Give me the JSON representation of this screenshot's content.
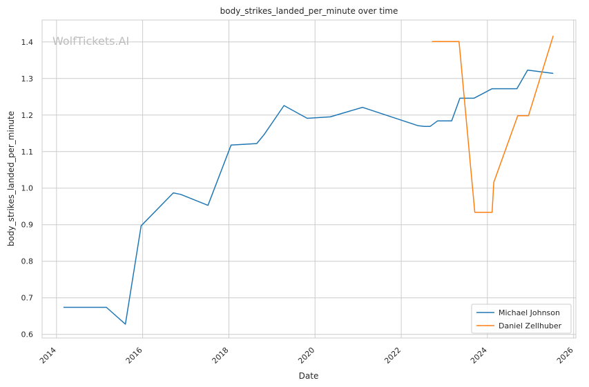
{
  "chart_data": {
    "type": "line",
    "title": "body_strikes_landed_per_minute over time",
    "xlabel": "Date",
    "ylabel": "body_strikes_landed_per_minute",
    "xlim": [
      "2013-09-01",
      "2026-01-20"
    ],
    "ylim": [
      0.59,
      1.46
    ],
    "x_ticks": [
      "2014",
      "2016",
      "2018",
      "2020",
      "2022",
      "2024",
      "2026"
    ],
    "y_ticks": [
      "0.6",
      "0.7",
      "0.8",
      "0.9",
      "1.0",
      "1.1",
      "1.2",
      "1.3",
      "1.4"
    ],
    "grid": true,
    "legend_position": "lower-right",
    "watermark": "WolfTickets.AI",
    "series": [
      {
        "name": "Michael Johnson",
        "color": "#1f77b4",
        "points": [
          [
            "2014-03-01",
            0.674
          ],
          [
            "2015-02-28",
            0.674
          ],
          [
            "2015-08-08",
            0.628
          ],
          [
            "2015-12-19",
            0.897
          ],
          [
            "2016-09-17",
            0.987
          ],
          [
            "2016-11-19",
            0.983
          ],
          [
            "2017-07-08",
            0.953
          ],
          [
            "2018-01-20",
            1.118
          ],
          [
            "2018-08-25",
            1.122
          ],
          [
            "2018-10-27",
            1.147
          ],
          [
            "2019-04-13",
            1.226
          ],
          [
            "2019-10-26",
            1.191
          ],
          [
            "2020-05-09",
            1.195
          ],
          [
            "2021-02-06",
            1.221
          ],
          [
            "2022-05-21",
            1.171
          ],
          [
            "2022-07-16",
            1.169
          ],
          [
            "2022-09-03",
            1.169
          ],
          [
            "2022-11-05",
            1.184
          ],
          [
            "2023-03-04",
            1.184
          ],
          [
            "2023-05-13",
            1.246
          ],
          [
            "2023-09-09",
            1.246
          ],
          [
            "2024-02-10",
            1.272
          ],
          [
            "2024-09-07",
            1.272
          ],
          [
            "2024-12-07",
            1.323
          ],
          [
            "2025-07-12",
            1.314
          ]
        ]
      },
      {
        "name": "Daniel Zellhuber",
        "color": "#ff7f0e",
        "points": [
          [
            "2022-09-17",
            1.401
          ],
          [
            "2023-05-06",
            1.401
          ],
          [
            "2023-09-16",
            0.934
          ],
          [
            "2024-02-10",
            0.934
          ],
          [
            "2024-02-24",
            1.016
          ],
          [
            "2024-09-14",
            1.198
          ],
          [
            "2024-12-14",
            1.198
          ],
          [
            "2025-07-12",
            1.417
          ]
        ]
      }
    ]
  }
}
